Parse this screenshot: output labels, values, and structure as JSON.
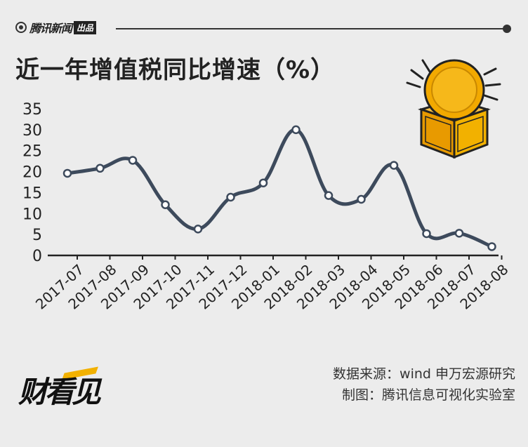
{
  "brand": {
    "name": "腾讯新闻",
    "tag": "出品"
  },
  "source": {
    "line1": "数据来源：wind 申万宏源研究",
    "line2": "制图：腾讯信息可视化实验室"
  },
  "logo": {
    "text": "财看见"
  },
  "colors": {
    "line": "#3d4a5c",
    "axis": "#222222",
    "coin": "#f2a900",
    "box": "#e89a00"
  },
  "chart_data": {
    "type": "line",
    "title": "近一年增值税同比增速（%）",
    "categories": [
      "2017-07",
      "2017-08",
      "2017-09",
      "2017-10",
      "2017-11",
      "2017-12",
      "2018-01",
      "2018-02",
      "2018-03",
      "2018-04",
      "2018-05",
      "2018-06",
      "2018-07",
      "2018-08"
    ],
    "values": [
      19.6,
      20.8,
      22.7,
      12.1,
      6.3,
      13.9,
      17.3,
      30,
      14.3,
      13.4,
      21.5,
      5.2,
      5.3,
      2.1
    ],
    "yticks": [
      0,
      5,
      10,
      15,
      20,
      25,
      30,
      35
    ],
    "ylim": [
      0,
      35
    ],
    "grid": false,
    "smooth": true
  }
}
